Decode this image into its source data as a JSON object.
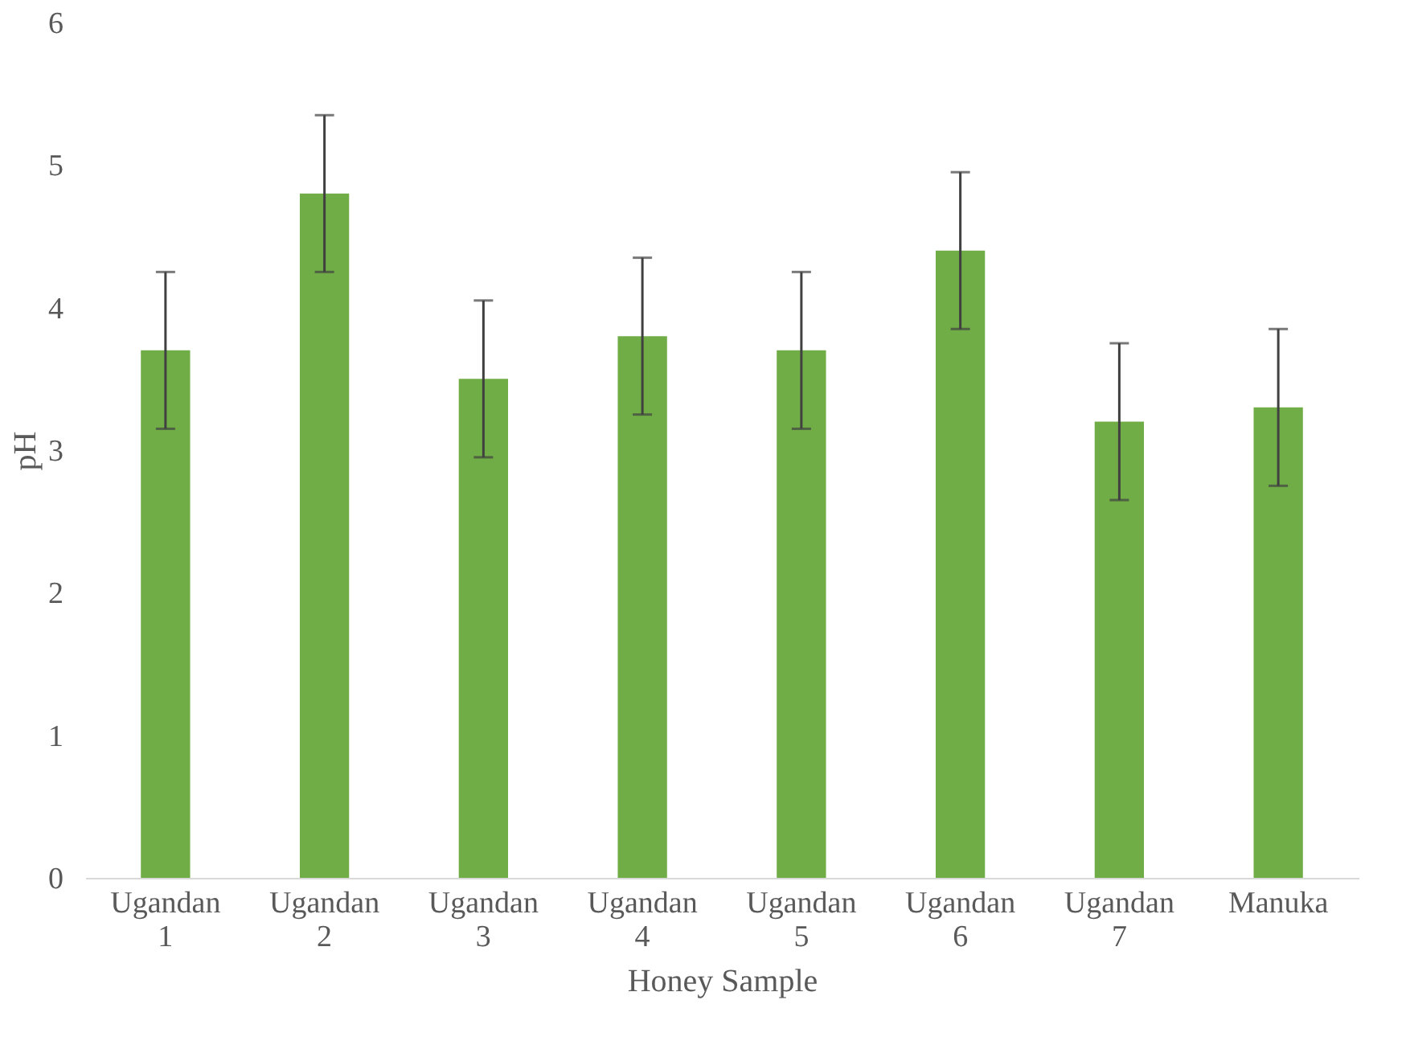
{
  "chart_data": {
    "type": "bar",
    "xlabel": "Honey Sample",
    "ylabel": "pH",
    "categories": [
      "Ugandan 1",
      "Ugandan 2",
      "Ugandan 3",
      "Ugandan 4",
      "Ugandan 5",
      "Ugandan 6",
      "Ugandan 7",
      "Manuka"
    ],
    "values": [
      3.7,
      4.8,
      3.5,
      3.8,
      3.7,
      4.4,
      3.2,
      3.3
    ],
    "errors": [
      0.55,
      0.55,
      0.55,
      0.55,
      0.55,
      0.55,
      0.55,
      0.55
    ],
    "color": "#70ad47",
    "ylim": [
      0,
      6
    ],
    "yticks": [
      0,
      1,
      2,
      3,
      4,
      5,
      6
    ],
    "grid": false
  }
}
